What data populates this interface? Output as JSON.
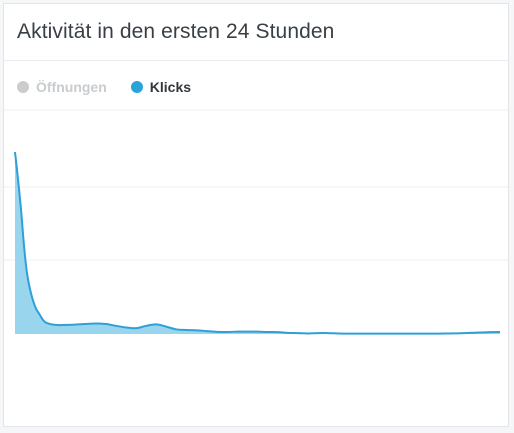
{
  "title": "Aktivität in den ersten 24 Stunden",
  "legend": [
    {
      "label": "Öffnungen",
      "color": "#cccccc",
      "active": false
    },
    {
      "label": "Klicks",
      "color": "#2aa3d9",
      "active": true
    }
  ],
  "colors": {
    "line": "#2f9fd8",
    "area": "#8fd0ec",
    "grid": "#eef0f2"
  },
  "chart_data": {
    "type": "area",
    "grid": true,
    "xlim": [
      0,
      24
    ],
    "ylim": [
      0,
      100
    ],
    "series": [
      {
        "name": "Klicks",
        "x": [
          0.0,
          0.15,
          0.3,
          0.45,
          0.6,
          0.8,
          1.0,
          1.2,
          1.5,
          2.0,
          2.5,
          3.0,
          3.5,
          4.0,
          4.5,
          5.0,
          5.5,
          6.0,
          6.5,
          7.0,
          7.5,
          8.0,
          8.5,
          9.0,
          9.5,
          10.0,
          10.5,
          11.0,
          11.5,
          12.0,
          12.5,
          13.0,
          13.5,
          14.0,
          14.5,
          15.0,
          15.5,
          16.0,
          16.5,
          17.0,
          17.5,
          18.0,
          18.5,
          19.0,
          19.5,
          20.0,
          20.5,
          21.0,
          21.5,
          22.0,
          22.5,
          23.0,
          23.5,
          24.0
        ],
        "values": [
          100,
          85,
          68,
          48,
          33,
          22,
          15,
          11,
          6.5,
          5,
          5,
          5.2,
          5.5,
          5.8,
          5.5,
          4.5,
          3.6,
          3.2,
          4.5,
          5.3,
          4,
          2.5,
          2.2,
          2,
          1.6,
          1.2,
          1.1,
          1.3,
          1.3,
          1.3,
          1.1,
          1,
          0.6,
          0.5,
          0.3,
          0.5,
          0.5,
          0.3,
          0.2,
          0.2,
          0.2,
          0.2,
          0.2,
          0.2,
          0.2,
          0.2,
          0.2,
          0.2,
          0.3,
          0.4,
          0.6,
          0.8,
          1.0,
          1.1
        ]
      }
    ]
  }
}
